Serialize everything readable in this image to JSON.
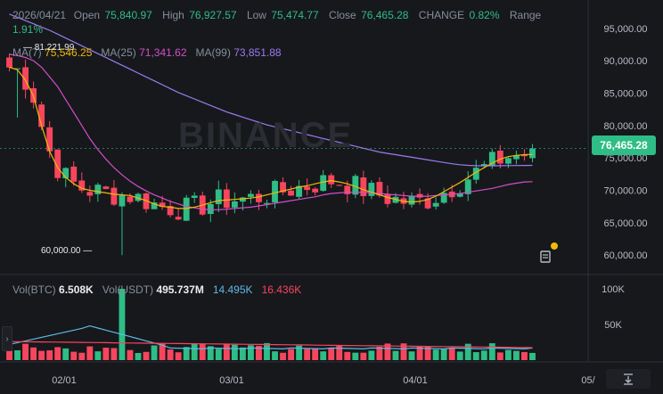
{
  "header": {
    "date": "2026/04/21",
    "open_label": "Open",
    "open": "75,840.97",
    "high_label": "High",
    "high": "76,927.57",
    "low_label": "Low",
    "low": "75,474.77",
    "close_label": "Close",
    "close": "76,465.28",
    "change_label": "CHANGE",
    "change": "0.82%",
    "range_label": "Range",
    "range": "1.91%"
  },
  "ma": {
    "ma7_label": "MA(7)",
    "ma7": "75,546.25",
    "ma25_label": "MA(25)",
    "ma25": "71,341.62",
    "ma99_label": "MA(99)",
    "ma99": "73,851.88"
  },
  "volume": {
    "btc_label": "Vol(BTC)",
    "btc": "6.508K",
    "usdt_label": "Vol(USDT)",
    "usdt": "495.737M",
    "v1": "14.495K",
    "v2": "16.436K"
  },
  "watermark": "BINANCE",
  "price_tag": "76,465.28",
  "high_marker": "81,221.99",
  "low_marker": "60,000.00",
  "colors": {
    "up": "#2ebd85",
    "down": "#f6465d",
    "ma7": "#f0b90b",
    "ma25": "#d34ecb",
    "ma99": "#9b7bf0",
    "vol_ma1": "#5eb9e6",
    "vol_ma2": "#f6465d"
  },
  "icons": [
    "news-icon",
    "expand-icon",
    "chevron-right-icon"
  ],
  "chart_data": {
    "type": "candlestick",
    "price_axis": {
      "ticks": [
        95000,
        90000,
        85000,
        80000,
        75000,
        70000,
        65000,
        60000
      ],
      "tick_labels": [
        "95,000.00",
        "90,000.00",
        "85,000.00",
        "80,000.00",
        "75,000.00",
        "70,000.00",
        "65,000.00",
        "60,000.00"
      ],
      "range": [
        57000,
        98000
      ]
    },
    "volume_axis": {
      "ticks": [
        100000,
        50000
      ],
      "tick_labels": [
        "100K",
        "50K"
      ]
    },
    "x_ticks": [
      "02/01",
      "03/01",
      "04/01",
      "05/"
    ],
    "ma7": [
      89000,
      88600,
      87000,
      84500,
      80000,
      76000,
      73500,
      72000,
      71000,
      70300,
      70000,
      69800,
      69600,
      69400,
      69300,
      69200,
      68800,
      68400,
      67900,
      67500,
      67400,
      67200,
      67200,
      67400,
      67700,
      68100,
      68400,
      68500,
      68600,
      68700,
      68800,
      69000,
      69300,
      69600,
      69900,
      70200,
      70500,
      70700,
      71000,
      71300,
      71500,
      71300,
      71000,
      70600,
      70100,
      69700,
      69300,
      68900,
      68600,
      68300,
      68200,
      68300,
      68600,
      69100,
      69800,
      70500,
      71200,
      72000,
      72800,
      73500,
      74200,
      74800,
      75200,
      75400,
      75500,
      75546
    ],
    "ma25": [
      91000,
      90800,
      90500,
      90000,
      89000,
      87500,
      86000,
      84000,
      82000,
      80000,
      78000,
      76300,
      74800,
      73500,
      72400,
      71400,
      70600,
      69900,
      69300,
      68800,
      68300,
      67900,
      67500,
      67300,
      67100,
      67000,
      67000,
      67100,
      67200,
      67300,
      67400,
      67600,
      67800,
      68000,
      68200,
      68400,
      68600,
      68800,
      69000,
      69300,
      69500,
      69600,
      69700,
      69700,
      69700,
      69600,
      69500,
      69400,
      69300,
      69200,
      69100,
      69100,
      69100,
      69200,
      69300,
      69400,
      69500,
      69700,
      69900,
      70100,
      70300,
      70600,
      70900,
      71100,
      71300,
      71341
    ],
    "ma99": [
      97200,
      96700,
      96200,
      95700,
      95200,
      94700,
      94100,
      93500,
      92900,
      92300,
      91700,
      91100,
      90500,
      89900,
      89300,
      88700,
      88100,
      87500,
      86900,
      86300,
      85700,
      85100,
      84600,
      84100,
      83600,
      83100,
      82600,
      82100,
      81700,
      81300,
      80900,
      80500,
      80100,
      79800,
      79500,
      79200,
      78900,
      78600,
      78300,
      78000,
      77700,
      77400,
      77100,
      76800,
      76500,
      76200,
      75900,
      75700,
      75500,
      75300,
      75100,
      74900,
      74700,
      74500,
      74300,
      74100,
      73950,
      73850,
      73800,
      73780,
      73790,
      73800,
      73810,
      73820,
      73840,
      73852
    ],
    "candles_count": 66
  }
}
